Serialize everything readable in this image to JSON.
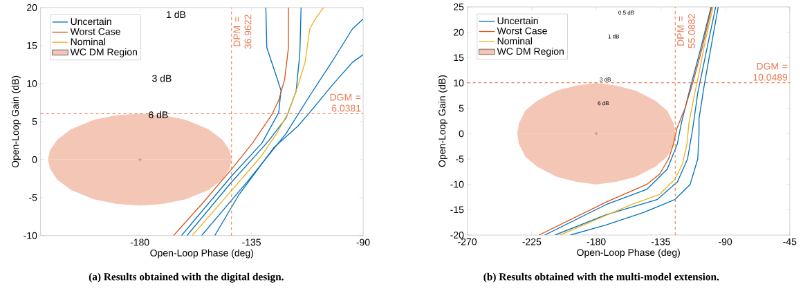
{
  "chart_data": [
    {
      "type": "line",
      "xlabel": "Open-Loop Phase (deg)",
      "ylabel": "Open-Loop Gain (dB)",
      "xlim": [
        -220,
        -90
      ],
      "xticks": [
        -180,
        -135,
        -90
      ],
      "ylim": [
        -10,
        20
      ],
      "yticks": [
        -10,
        -5,
        0,
        5,
        10,
        15,
        20
      ],
      "legend": "top left",
      "series": [
        {
          "name": "Uncertain",
          "color": "#0072bd",
          "x": [
            -163.2,
            -143.1,
            -130.7,
            -124,
            -123.1,
            -125.9,
            -128.8,
            -129.2
          ],
          "values": [
            -10,
            -2.2,
            2.2,
            6.2,
            9.1,
            11.9,
            14.7,
            20
          ]
        },
        {
          "color": "#0072bd",
          "x": [
            -161,
            -143.1,
            -128,
            -121,
            -117,
            -115.5,
            -115
          ],
          "values": [
            -10,
            -3,
            2.5,
            5.5,
            9,
            14,
            20
          ]
        },
        {
          "color": "#0072bd",
          "x": [
            -155.1,
            -136.4,
            -121.1,
            -111.5,
            -101.9,
            -94.3,
            -90
          ],
          "values": [
            -10,
            -2.8,
            3.4,
            8.4,
            13.2,
            17.2,
            18.5
          ]
        },
        {
          "color": "#0072bd",
          "x": [
            -149.8,
            -140.2,
            -125.9,
            -116.3,
            -111.5,
            -101.9,
            -94.3,
            -90
          ],
          "values": [
            -10,
            -4.7,
            1.6,
            4.4,
            6.2,
            10,
            12.8,
            13.8
          ]
        },
        {
          "name": "Worst Case",
          "color": "#d95319",
          "x": [
            -166.4,
            -154.6,
            -143.1,
            -134.5,
            -126.8,
            -124.0,
            -121.6,
            -120.1,
            -120.1
          ],
          "values": [
            -10,
            -5.7,
            -1.3,
            2.2,
            5.9,
            7.8,
            10.6,
            14.7,
            20
          ]
        },
        {
          "name": "Nominal",
          "color": "#edb120",
          "x": [
            -158.9,
            -143.1,
            -130.7,
            -124.9,
            -120.1,
            -116.3,
            -113.4,
            -111.5,
            -109.1,
            -106
          ],
          "values": [
            -10,
            -4.1,
            0.6,
            3.4,
            6.2,
            9.7,
            12.8,
            17.2,
            18.6,
            20
          ]
        },
        {
          "name": "WC DM Region",
          "type": "area",
          "color": "#f3c6b5",
          "x": [
            -216.96,
            -216.22,
            -213.26,
            -207.72,
            -198.48,
            -189.24,
            -180,
            -170.76,
            -161.52,
            -152.28,
            -146.74,
            -143.78,
            -143.04
          ],
          "values": [
            0,
            1.2,
            2.63,
            3.99,
            5.23,
            5.85,
            6.04,
            5.85,
            5.23,
            3.99,
            2.63,
            1.2,
            0
          ]
        },
        {
          "type": "area",
          "color": "#f3c6b5",
          "x": [
            -216.96,
            -216.22,
            -213.26,
            -207.72,
            -198.48,
            -189.24,
            -180,
            -170.76,
            -161.52,
            -152.28,
            -146.74,
            -143.78,
            -143.04
          ],
          "values": [
            0,
            -1.2,
            -2.63,
            -3.99,
            -5.23,
            -5.85,
            -6.04,
            -5.85,
            -5.23,
            -3.99,
            -2.63,
            -1.2,
            0
          ]
        },
        {
          "type": "scatter",
          "marker": "cross",
          "color": "#d95319",
          "x": [
            -180
          ],
          "values": [
            0
          ]
        }
      ],
      "ref_lines": [
        {
          "axis": "x",
          "value": -143.0378,
          "color": "#ea7a50",
          "line_style": "dashed"
        },
        {
          "axis": "y",
          "value": 6.0381,
          "color": "#ea7a50",
          "line_style": "dashed"
        }
      ],
      "annotations": [
        {
          "text": "DPM = 36.9622",
          "x": -143.0378,
          "y": 20
        },
        {
          "text": "DGM = 6.0381",
          "x": -90,
          "y": 6.0381
        },
        "1 dB",
        "3 dB",
        "6 dB",
        "(a) Results obtained with the digital design."
      ]
    },
    {
      "type": "line",
      "xlabel": "Open-Loop Phase (deg)",
      "ylabel": "Open-Loop Gain (dB)",
      "xlim": [
        -270,
        -45
      ],
      "xticks": [
        -270,
        -225,
        -180,
        -135,
        -90,
        -45
      ],
      "ylim": [
        -20,
        25
      ],
      "yticks": [
        -20,
        -15,
        -10,
        -5,
        0,
        5,
        10,
        15,
        20,
        25
      ],
      "legend": "top left",
      "series": [
        {
          "name": "Uncertain",
          "color": "#0072bd",
          "x": [
            -198.1,
            -173.2,
            -146.5,
            -125.2,
            -114.5,
            -109.2,
            -108.3,
            -108.3,
            -104.7,
            -100.3,
            -94.9
          ],
          "values": [
            -20,
            -18,
            -15.5,
            -13,
            -10,
            -5,
            0,
            3,
            9.5,
            16.5,
            25
          ]
        },
        {
          "color": "#0072bd",
          "x": [
            -208.8,
            -173.2,
            -137.6,
            -123.4,
            -116.3,
            -112.7,
            -109.2,
            -103,
            -96.7
          ],
          "values": [
            -20,
            -16,
            -13,
            -9.5,
            -5,
            1,
            8,
            16.5,
            25
          ]
        },
        {
          "color": "#0072bd",
          "x": [
            -216,
            -173.2,
            -144.8,
            -130.5,
            -123.4,
            -120.7,
            -114.5,
            -107.4,
            -99.9
          ],
          "values": [
            -20,
            -14,
            -11,
            -7,
            -2,
            2,
            9,
            16.5,
            25
          ]
        },
        {
          "name": "Worst Case",
          "color": "#d95319",
          "x": [
            -220,
            -173.2,
            -144.8,
            -135.9,
            -129.6,
            -126.1,
            -123.8,
            -118.1,
            -112.7,
            -106.5,
            -99.4
          ],
          "values": [
            -20,
            -13.5,
            -10,
            -8,
            -5,
            -2,
            1,
            5,
            10,
            16.5,
            25
          ]
        },
        {
          "name": "Nominal",
          "color": "#edb120",
          "x": [
            -205.3,
            -180.4,
            -155.4,
            -135.9,
            -125.2,
            -119.9,
            -116.7,
            -115.4,
            -112.7,
            -108.3,
            -103.8,
            -98.5
          ],
          "values": [
            -20,
            -17,
            -14,
            -12,
            -9,
            -6,
            -2,
            2,
            6,
            12,
            18.5,
            25
          ]
        },
        {
          "name": "WC DM Region",
          "type": "area",
          "color": "#f3c6b5",
          "x": [
            -235.09,
            -233.99,
            -229.58,
            -221.32,
            -207.54,
            -193.77,
            -180,
            -166.23,
            -152.46,
            -138.68,
            -130.42,
            -126.01,
            -124.91
          ],
          "values": [
            0,
            2,
            4.5,
            6.5,
            8.5,
            9.5,
            10,
            9.5,
            8.5,
            6.5,
            4.5,
            2,
            0
          ]
        },
        {
          "type": "area",
          "color": "#f3c6b5",
          "x": [
            -235.09,
            -233.99,
            -229.58,
            -221.32,
            -207.54,
            -193.77,
            -180,
            -166.23,
            -152.46,
            -138.68,
            -130.42,
            -126.01,
            -124.91
          ],
          "values": [
            0,
            -2,
            -4.5,
            -6.5,
            -8.5,
            -9.5,
            -10,
            -9.5,
            -8.5,
            -6.5,
            -4.5,
            -2,
            0
          ]
        },
        {
          "type": "scatter",
          "marker": "cross",
          "color": "#d95319",
          "x": [
            -180
          ],
          "values": [
            0
          ]
        }
      ],
      "ref_lines": [
        {
          "axis": "x",
          "value": -124.9118,
          "color": "#ea7a50",
          "line_style": "dashed"
        },
        {
          "axis": "y",
          "value": 10.0489,
          "color": "#ea7a50",
          "line_style": "dashed"
        }
      ],
      "annotations": [
        {
          "text": "DPM = 55.0882",
          "x": -124.9118,
          "y": 25
        },
        {
          "text": "DGM = 10.0489",
          "x": -45,
          "y": 10.0489
        },
        "0.5 dB",
        "1 dB",
        "3 dB",
        "6 dB",
        "(b) Results obtained with the multi-model extension."
      ]
    }
  ]
}
